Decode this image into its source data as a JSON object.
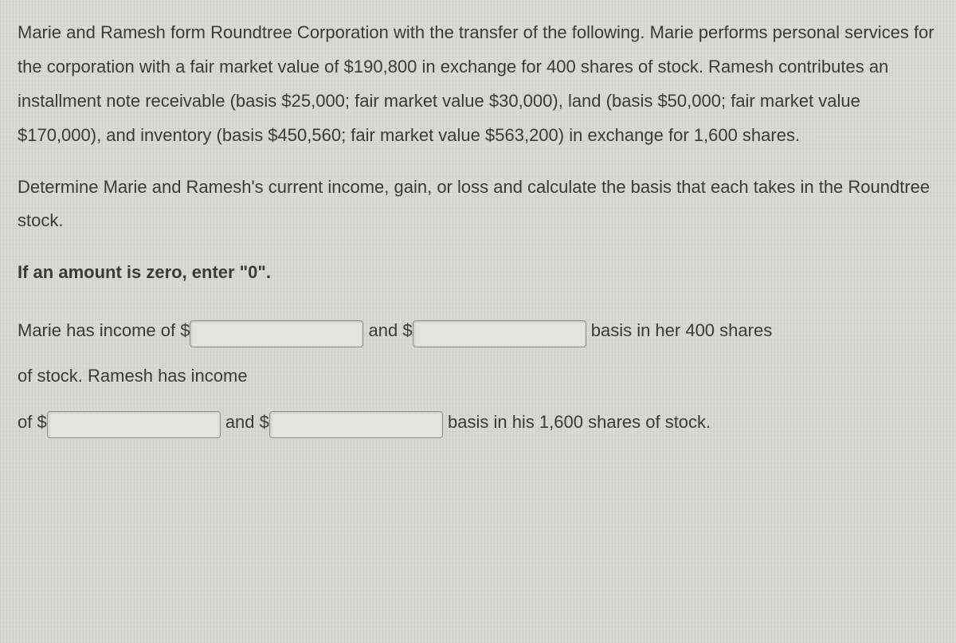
{
  "para1": "Marie and Ramesh form Roundtree Corporation with the transfer of the following. Marie performs personal services for the corporation with a fair market value of $190,800 in exchange for 400 shares of stock. Ramesh contributes an installment note receivable (basis $25,000; fair market value $30,000), land (basis $50,000; fair market value $170,000), and inventory (basis $450,560; fair market value $563,200) in exchange for 1,600 shares.",
  "para2": "Determine Marie and Ramesh's current income, gain, or loss and calculate the basis that each takes in the Roundtree stock.",
  "instruction": "If an amount is zero, enter \"0\".",
  "answer": {
    "seg1": "Marie has income of $",
    "seg2": " and $",
    "seg3": " basis in her 400 shares",
    "seg4": "of stock. Ramesh has income",
    "seg5": "of $",
    "seg6": " and $",
    "seg7": " basis in his 1,600 shares of stock."
  }
}
